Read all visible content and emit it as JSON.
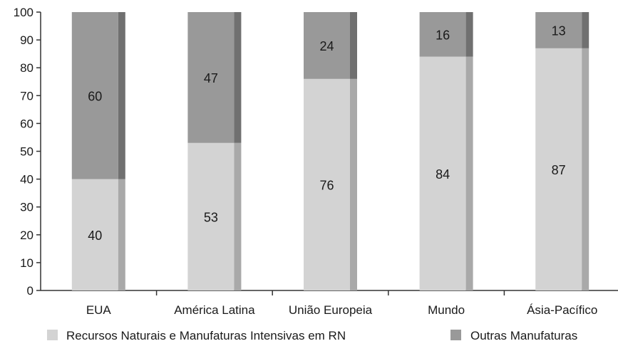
{
  "chart_data": {
    "type": "bar",
    "stacked": true,
    "categories": [
      "EUA",
      "América Latina",
      "União Europeia",
      "Mundo",
      "Ásia-Pacífico"
    ],
    "series": [
      {
        "name": "Recursos Naturais e Manufaturas Intensivas em RN",
        "values": [
          40,
          53,
          76,
          84,
          87
        ],
        "color": "#d3d3d3",
        "shade": "#a9a9a9"
      },
      {
        "name": "Outras Manufaturas",
        "values": [
          60,
          47,
          24,
          16,
          13
        ],
        "color": "#999999",
        "shade": "#707070"
      }
    ],
    "ylim": [
      0,
      100
    ],
    "yticks": [
      0,
      10,
      20,
      30,
      40,
      50,
      60,
      70,
      80,
      90,
      100
    ],
    "grid": false,
    "legend_position": "bottom",
    "data_labels": true
  }
}
